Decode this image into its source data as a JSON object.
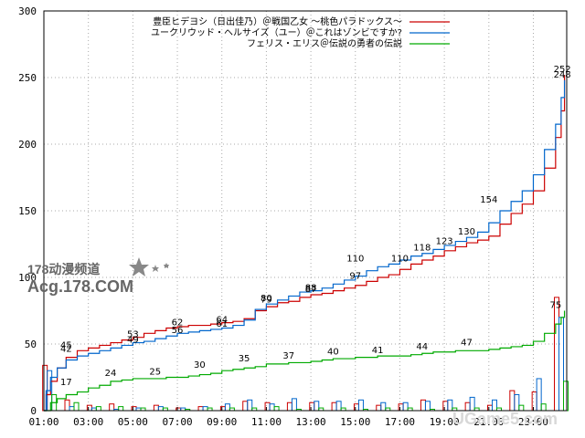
{
  "chart_data": {
    "type": "line",
    "title": "",
    "xlabel": "",
    "ylabel": "",
    "x_ticks": [
      "01:00",
      "03:00",
      "05:00",
      "07:00",
      "09:00",
      "11:00",
      "13:00",
      "15:00",
      "17:00",
      "19:00",
      "21:00",
      "23:00"
    ],
    "x_range": [
      1,
      24.5
    ],
    "ylim": [
      0,
      300
    ],
    "y_ticks": [
      0,
      50,
      100,
      150,
      200,
      250,
      300
    ],
    "grid": true,
    "legend_position": "top-right",
    "series": [
      {
        "name": "豊臣ヒデヨシ（日出佳乃）＠戦国乙女 ～桃色パラドックス～",
        "color": "#cc0000",
        "points": [
          [
            1,
            0
          ],
          [
            1.1,
            12
          ],
          [
            1.3,
            22
          ],
          [
            1.6,
            32
          ],
          [
            2,
            40
          ],
          [
            2.5,
            45
          ],
          [
            3,
            47
          ],
          [
            3.5,
            49
          ],
          [
            4,
            51
          ],
          [
            4.5,
            53
          ],
          [
            5,
            55
          ],
          [
            5.5,
            58
          ],
          [
            6,
            60
          ],
          [
            6.5,
            62
          ],
          [
            7,
            63
          ],
          [
            7.5,
            64
          ],
          [
            8,
            64
          ],
          [
            8.5,
            65
          ],
          [
            9,
            66
          ],
          [
            9.5,
            67
          ],
          [
            10,
            69
          ],
          [
            10.5,
            75
          ],
          [
            11,
            78
          ],
          [
            11.5,
            81
          ],
          [
            12,
            82
          ],
          [
            12.5,
            85
          ],
          [
            13,
            87
          ],
          [
            13.5,
            88
          ],
          [
            14,
            90
          ],
          [
            14.5,
            92
          ],
          [
            15,
            94
          ],
          [
            15.5,
            97
          ],
          [
            16,
            100
          ],
          [
            16.5,
            102
          ],
          [
            17,
            106
          ],
          [
            17.5,
            110
          ],
          [
            18,
            113
          ],
          [
            18.5,
            116
          ],
          [
            19,
            120
          ],
          [
            19.5,
            123
          ],
          [
            20,
            126
          ],
          [
            20.5,
            128
          ],
          [
            21,
            131
          ],
          [
            21.5,
            140
          ],
          [
            22,
            148
          ],
          [
            22.5,
            155
          ],
          [
            23,
            165
          ],
          [
            23.5,
            182
          ],
          [
            24,
            205
          ],
          [
            24.25,
            225
          ],
          [
            24.4,
            252
          ]
        ],
        "labels": [
          [
            2,
            45,
            "45"
          ],
          [
            5,
            53,
            "53"
          ],
          [
            7,
            62,
            "62"
          ],
          [
            9,
            64,
            "64"
          ],
          [
            11,
            80,
            "80"
          ],
          [
            13,
            87,
            "87"
          ],
          [
            15,
            97,
            "97"
          ],
          [
            17,
            110,
            "110"
          ],
          [
            19,
            123,
            "123"
          ],
          [
            24.3,
            252,
            "252"
          ]
        ]
      },
      {
        "name": "ユークリウッド・ヘルサイズ（ユー）＠これはゾンビですか?",
        "color": "#0066cc",
        "points": [
          [
            1,
            0
          ],
          [
            1.1,
            15
          ],
          [
            1.3,
            25
          ],
          [
            1.6,
            32
          ],
          [
            2,
            38
          ],
          [
            2.5,
            41
          ],
          [
            3,
            43
          ],
          [
            3.5,
            45
          ],
          [
            4,
            47
          ],
          [
            4.5,
            49
          ],
          [
            5,
            51
          ],
          [
            5.5,
            52
          ],
          [
            6,
            54
          ],
          [
            6.5,
            56
          ],
          [
            7,
            58
          ],
          [
            7.5,
            59
          ],
          [
            8,
            60
          ],
          [
            8.5,
            61
          ],
          [
            9,
            62
          ],
          [
            9.5,
            64
          ],
          [
            10,
            68
          ],
          [
            10.5,
            76
          ],
          [
            11,
            80
          ],
          [
            11.5,
            83
          ],
          [
            12,
            86
          ],
          [
            12.5,
            89
          ],
          [
            13,
            90
          ],
          [
            13.5,
            92
          ],
          [
            14,
            95
          ],
          [
            14.5,
            98
          ],
          [
            15,
            101
          ],
          [
            15.5,
            105
          ],
          [
            16,
            108
          ],
          [
            16.5,
            110
          ],
          [
            17,
            113
          ],
          [
            17.5,
            116
          ],
          [
            18,
            118
          ],
          [
            18.5,
            121
          ],
          [
            19,
            124
          ],
          [
            19.5,
            127
          ],
          [
            20,
            130
          ],
          [
            20.5,
            134
          ],
          [
            21,
            141
          ],
          [
            21.5,
            150
          ],
          [
            22,
            157
          ],
          [
            22.5,
            165
          ],
          [
            23,
            177
          ],
          [
            23.5,
            196
          ],
          [
            24,
            215
          ],
          [
            24.25,
            235
          ],
          [
            24.4,
            248
          ]
        ],
        "labels": [
          [
            2,
            42,
            "42"
          ],
          [
            5,
            49,
            "49"
          ],
          [
            7,
            56,
            "56"
          ],
          [
            9,
            61,
            "61"
          ],
          [
            11,
            79,
            "79"
          ],
          [
            13,
            88,
            "88"
          ],
          [
            15,
            110,
            "110"
          ],
          [
            18,
            118,
            "118"
          ],
          [
            20,
            130,
            "130"
          ],
          [
            21,
            154,
            "154"
          ],
          [
            24.3,
            248,
            "248"
          ]
        ]
      },
      {
        "name": "フェリス・エリス＠伝説の勇者の伝説",
        "color": "#00aa00",
        "points": [
          [
            1,
            0
          ],
          [
            1.3,
            6
          ],
          [
            1.6,
            9
          ],
          [
            2,
            12
          ],
          [
            2.5,
            14
          ],
          [
            3,
            17
          ],
          [
            3.5,
            19
          ],
          [
            4,
            22
          ],
          [
            4.5,
            23
          ],
          [
            5,
            24
          ],
          [
            5.5,
            24
          ],
          [
            6,
            24
          ],
          [
            6.5,
            25
          ],
          [
            7,
            25
          ],
          [
            7.5,
            26
          ],
          [
            8,
            27
          ],
          [
            8.5,
            28
          ],
          [
            9,
            30
          ],
          [
            9.5,
            31
          ],
          [
            10,
            32
          ],
          [
            10.5,
            33
          ],
          [
            11,
            35
          ],
          [
            11.5,
            35
          ],
          [
            12,
            36
          ],
          [
            12.5,
            36
          ],
          [
            13,
            37
          ],
          [
            13.5,
            38
          ],
          [
            14,
            39
          ],
          [
            14.5,
            39
          ],
          [
            15,
            40
          ],
          [
            15.5,
            40
          ],
          [
            16,
            41
          ],
          [
            16.5,
            41
          ],
          [
            17,
            41
          ],
          [
            17.5,
            42
          ],
          [
            18,
            43
          ],
          [
            18.5,
            44
          ],
          [
            19,
            44
          ],
          [
            19.5,
            45
          ],
          [
            20,
            45
          ],
          [
            20.5,
            45
          ],
          [
            21,
            46
          ],
          [
            21.5,
            47
          ],
          [
            22,
            48
          ],
          [
            22.5,
            49
          ],
          [
            23,
            52
          ],
          [
            23.5,
            58
          ],
          [
            24,
            65
          ],
          [
            24.25,
            70
          ],
          [
            24.4,
            75
          ]
        ],
        "labels": [
          [
            2,
            17,
            "17"
          ],
          [
            4,
            24,
            "24"
          ],
          [
            6,
            25,
            "25"
          ],
          [
            8,
            30,
            "30"
          ],
          [
            10,
            35,
            "35"
          ],
          [
            12,
            37,
            "37"
          ],
          [
            14,
            40,
            "40"
          ],
          [
            16,
            41,
            "41"
          ],
          [
            18,
            44,
            "44"
          ],
          [
            20,
            47,
            "47"
          ],
          [
            24,
            75,
            "75"
          ]
        ]
      }
    ],
    "bars_hourly": [
      {
        "hour": 1,
        "red": 34,
        "blue": 30,
        "green": 12
      },
      {
        "hour": 2,
        "red": 8,
        "blue": 3,
        "green": 6
      },
      {
        "hour": 3,
        "red": 4,
        "blue": 2,
        "green": 3
      },
      {
        "hour": 4,
        "red": 5,
        "blue": 1,
        "green": 3
      },
      {
        "hour": 5,
        "red": 3,
        "blue": 2,
        "green": 2
      },
      {
        "hour": 6,
        "red": 4,
        "blue": 3,
        "green": 2
      },
      {
        "hour": 7,
        "red": 2,
        "blue": 2,
        "green": 1
      },
      {
        "hour": 8,
        "red": 3,
        "blue": 3,
        "green": 2
      },
      {
        "hour": 9,
        "red": 3,
        "blue": 5,
        "green": 2
      },
      {
        "hour": 10,
        "red": 7,
        "blue": 8,
        "green": 2
      },
      {
        "hour": 11,
        "red": 6,
        "blue": 5,
        "green": 3
      },
      {
        "hour": 12,
        "red": 6,
        "blue": 9,
        "green": 1
      },
      {
        "hour": 13,
        "red": 6,
        "blue": 7,
        "green": 2
      },
      {
        "hour": 14,
        "red": 6,
        "blue": 7,
        "green": 2
      },
      {
        "hour": 15,
        "red": 5,
        "blue": 8,
        "green": 1
      },
      {
        "hour": 16,
        "red": 4,
        "blue": 6,
        "green": 2
      },
      {
        "hour": 17,
        "red": 5,
        "blue": 6,
        "green": 2
      },
      {
        "hour": 18,
        "red": 8,
        "blue": 7,
        "green": 1
      },
      {
        "hour": 19,
        "red": 7,
        "blue": 8,
        "green": 2
      },
      {
        "hour": 20,
        "red": 6,
        "blue": 10,
        "green": 2
      },
      {
        "hour": 21,
        "red": 4,
        "blue": 8,
        "green": 2
      },
      {
        "hour": 22,
        "red": 15,
        "blue": 12,
        "green": 4
      },
      {
        "hour": 23,
        "red": 14,
        "blue": 24,
        "green": 5
      },
      {
        "hour": 24,
        "red": 85,
        "blue": 70,
        "green": 22
      }
    ]
  },
  "watermarks": {
    "left_top": "178动漫频道",
    "left_bottom": "Acg.178.COM",
    "bottom_right": "UGame5.com"
  }
}
